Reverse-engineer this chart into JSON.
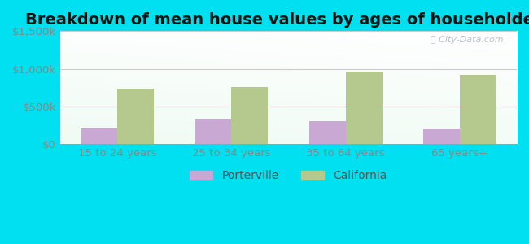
{
  "title": "Breakdown of mean house values by ages of householders",
  "categories": [
    "15 to 24 years",
    "25 to 34 years",
    "35 to 64 years",
    "65 years+"
  ],
  "porterville_values": [
    220000,
    330000,
    305000,
    205000
  ],
  "california_values": [
    735000,
    760000,
    960000,
    915000
  ],
  "porterville_color": "#c9a8d4",
  "california_color": "#b5c98e",
  "ylim": [
    0,
    1500000
  ],
  "yticks": [
    0,
    500000,
    1000000,
    1500000
  ],
  "ytick_labels": [
    "$0",
    "$500k",
    "$1,000k",
    "$1,500k"
  ],
  "background_outer": "#00e0f0",
  "grid_color_500k": "#e8b8c8",
  "grid_color_1000k": "#dddddd",
  "grid_color_1500k": "#dddddd",
  "watermark": "City-Data.com",
  "legend_labels": [
    "Porterville",
    "California"
  ],
  "bar_width": 0.32,
  "title_fontsize": 14,
  "tick_fontsize": 9.5,
  "legend_fontsize": 10
}
